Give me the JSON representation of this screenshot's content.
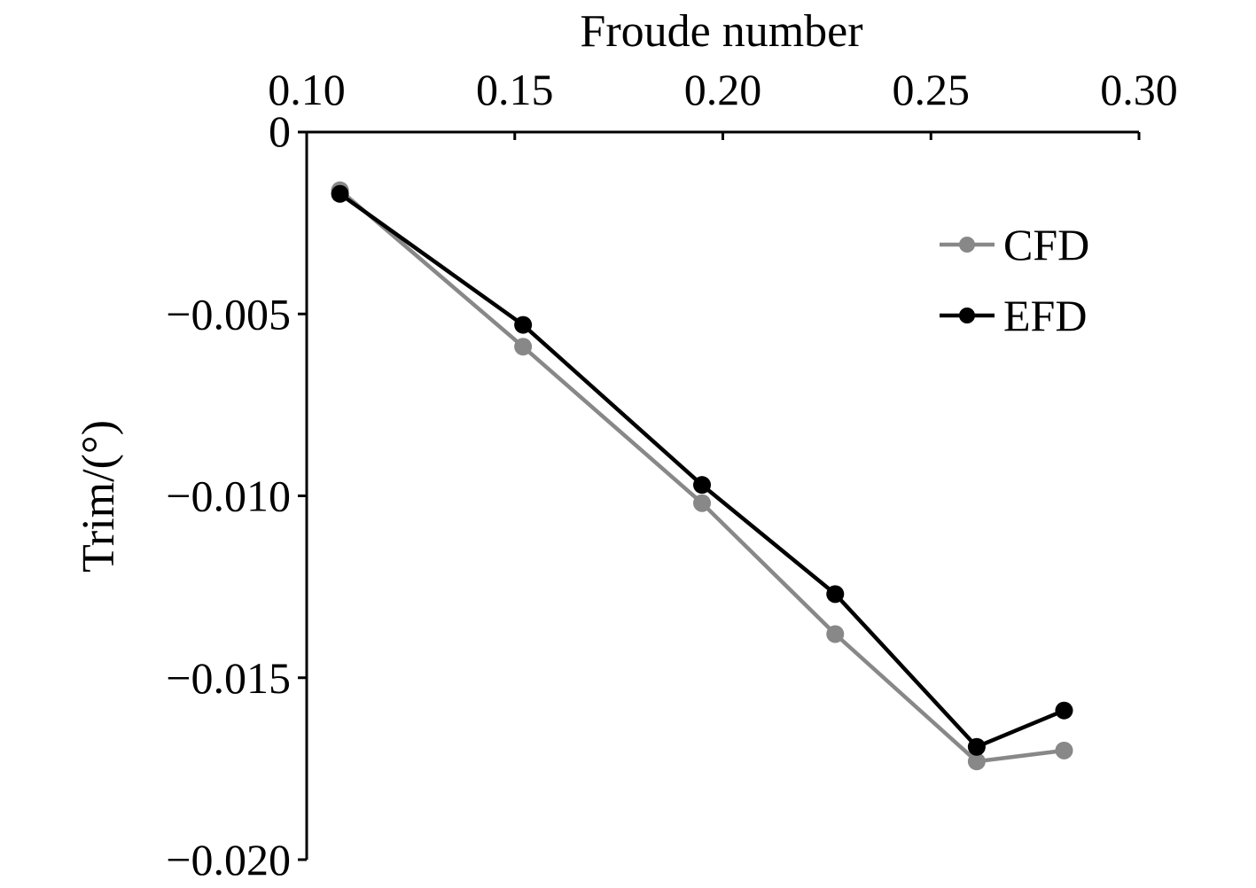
{
  "chart_data": {
    "type": "line",
    "xlabel": "Froude number",
    "ylabel": "Trim/(°)",
    "xlim": [
      0.1,
      0.3
    ],
    "ylim": [
      -0.02,
      0
    ],
    "x_axis_position": "top",
    "x_ticks": [
      0.1,
      0.15,
      0.2,
      0.25,
      0.3
    ],
    "x_tick_labels": [
      "0.10",
      "0.15",
      "0.20",
      "0.25",
      "0.30"
    ],
    "y_ticks": [
      0,
      -0.005,
      -0.01,
      -0.015,
      -0.02
    ],
    "y_tick_labels": [
      "0",
      "−0.005",
      "−0.010",
      "−0.015",
      "−0.020"
    ],
    "grid": false,
    "legend_position": "top-right",
    "series": [
      {
        "name": "CFD",
        "color": "#888888",
        "marker": "circle",
        "x": [
          0.108,
          0.152,
          0.195,
          0.227,
          0.261,
          0.282
        ],
        "y": [
          -0.0016,
          -0.0059,
          -0.0102,
          -0.0138,
          -0.0173,
          -0.017
        ]
      },
      {
        "name": "EFD",
        "color": "#000000",
        "marker": "circle",
        "x": [
          0.108,
          0.152,
          0.195,
          0.227,
          0.261,
          0.282
        ],
        "y": [
          -0.0017,
          -0.0053,
          -0.0097,
          -0.0127,
          -0.0169,
          -0.0159
        ]
      }
    ]
  }
}
